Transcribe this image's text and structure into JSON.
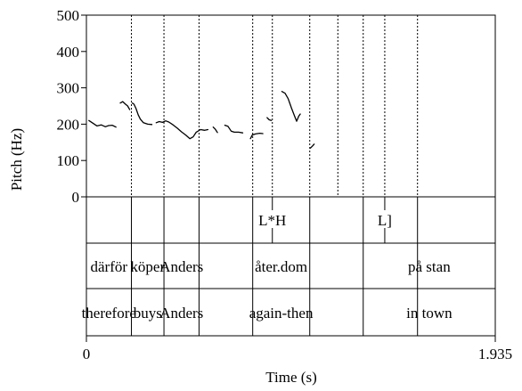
{
  "chart_data": {
    "type": "line",
    "xlabel": "Time (s)",
    "ylabel": "Pitch (Hz)",
    "xlim": [
      0,
      1.935
    ],
    "ylim": [
      0,
      500
    ],
    "x_tick_labels": [
      "0",
      "1.935"
    ],
    "y_ticks": [
      0,
      100,
      200,
      300,
      400,
      500
    ],
    "y_tick_labels": [
      "0",
      "100",
      "200",
      "300",
      "400",
      "500"
    ],
    "boundaries": [
      0.213,
      0.367,
      0.533,
      0.787,
      0.88,
      1.057,
      1.19,
      1.31,
      1.412,
      1.567
    ],
    "word_boundaries": [
      0.213,
      0.367,
      0.533,
      0.787,
      1.057,
      1.31,
      1.567
    ],
    "tones": [
      {
        "label": "L*H",
        "time": 0.88
      },
      {
        "label": "L]",
        "time": 1.412
      }
    ],
    "words": [
      {
        "swedish": "därför",
        "gloss": "therefore",
        "start": 0.0,
        "end": 0.213
      },
      {
        "swedish": "köper",
        "gloss": "buys",
        "start": 0.213,
        "end": 0.367
      },
      {
        "swedish": "Anders",
        "gloss": "Anders",
        "start": 0.367,
        "end": 0.533
      },
      {
        "swedish": "åter.dom",
        "gloss": "again-then",
        "start": 0.533,
        "end": 1.31
      },
      {
        "swedish": "på stan",
        "gloss": "in town",
        "start": 1.31,
        "end": 1.935
      }
    ],
    "series": [
      {
        "points": [
          [
            0.012,
            210
          ],
          [
            0.03,
            203
          ],
          [
            0.05,
            195
          ],
          [
            0.07,
            198
          ],
          [
            0.09,
            193
          ],
          [
            0.105,
            196
          ],
          [
            0.122,
            197
          ],
          [
            0.14,
            192
          ]
        ]
      },
      {
        "points": [
          [
            0.16,
            258
          ],
          [
            0.172,
            262
          ],
          [
            0.185,
            255
          ],
          [
            0.195,
            250
          ],
          [
            0.205,
            240
          ]
        ]
      },
      {
        "points": [
          [
            0.217,
            258
          ],
          [
            0.225,
            255
          ],
          [
            0.235,
            243
          ],
          [
            0.245,
            226
          ],
          [
            0.255,
            214
          ],
          [
            0.27,
            204
          ],
          [
            0.29,
            200
          ],
          [
            0.31,
            199
          ]
        ]
      },
      {
        "points": [
          [
            0.33,
            204
          ],
          [
            0.345,
            207
          ],
          [
            0.36,
            205
          ],
          [
            0.375,
            209
          ],
          [
            0.39,
            206
          ],
          [
            0.41,
            198
          ],
          [
            0.43,
            189
          ],
          [
            0.45,
            179
          ],
          [
            0.47,
            170
          ],
          [
            0.49,
            160
          ],
          [
            0.505,
            165
          ],
          [
            0.52,
            178
          ],
          [
            0.54,
            185
          ],
          [
            0.56,
            183
          ],
          [
            0.575,
            185
          ]
        ]
      },
      {
        "points": [
          [
            0.6,
            192
          ],
          [
            0.61,
            186
          ],
          [
            0.62,
            177
          ]
        ]
      },
      {
        "points": [
          [
            0.655,
            197
          ],
          [
            0.67,
            194
          ],
          [
            0.685,
            181
          ],
          [
            0.7,
            178
          ],
          [
            0.72,
            178
          ],
          [
            0.74,
            176
          ]
        ]
      },
      {
        "points": [
          [
            0.776,
            160
          ],
          [
            0.785,
            170
          ],
          [
            0.8,
            173
          ],
          [
            0.82,
            175
          ],
          [
            0.835,
            174
          ]
        ]
      },
      {
        "points": [
          [
            0.855,
            218
          ],
          [
            0.865,
            212
          ],
          [
            0.875,
            210
          ]
        ]
      },
      {
        "points": [
          [
            0.925,
            290
          ],
          [
            0.94,
            285
          ],
          [
            0.955,
            270
          ],
          [
            0.97,
            245
          ],
          [
            0.985,
            222
          ],
          [
            0.995,
            208
          ],
          [
            1.005,
            222
          ],
          [
            1.012,
            228
          ]
        ]
      },
      {
        "points": [
          [
            1.06,
            134
          ],
          [
            1.07,
            140
          ],
          [
            1.078,
            145
          ]
        ]
      }
    ]
  }
}
